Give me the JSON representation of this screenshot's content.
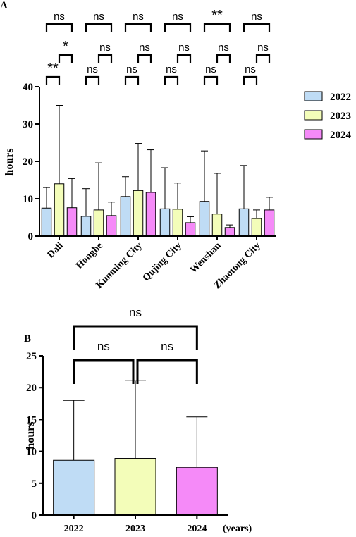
{
  "chart_data": [
    {
      "panel_label": "A",
      "type": "bar",
      "ylabel": "hours",
      "ylim": [
        0,
        40
      ],
      "yticks": [
        0,
        10,
        20,
        30,
        40
      ],
      "categories": [
        "Dali",
        "Honghe",
        "Kunming City",
        "Qujing City",
        "Wenshan",
        "Zhaotong City"
      ],
      "legend": {
        "placement": "right"
      },
      "series": [
        {
          "name": "2022",
          "color": "#bfdcf5",
          "values": [
            7.5,
            5.3,
            10.6,
            7.3,
            9.3,
            7.3
          ],
          "err_upper": [
            13.0,
            12.7,
            15.9,
            18.3,
            22.8,
            18.9
          ]
        },
        {
          "name": "2023",
          "color": "#f3fdb9",
          "values": [
            14.0,
            7.0,
            12.2,
            7.2,
            5.9,
            4.7
          ],
          "err_upper": [
            35.0,
            19.6,
            24.8,
            14.2,
            16.8,
            7.0
          ]
        },
        {
          "name": "2024",
          "color": "#f58af8",
          "values": [
            7.6,
            5.5,
            11.7,
            3.6,
            2.3,
            7.0
          ],
          "err_upper": [
            15.4,
            9.1,
            23.1,
            5.2,
            3.0,
            10.4
          ]
        }
      ],
      "annotations": [
        {
          "category": "Dali",
          "pair": "2022-2024",
          "text": "ns"
        },
        {
          "category": "Dali",
          "pair": "2023-2024",
          "text": "*"
        },
        {
          "category": "Dali",
          "pair": "2022-2023",
          "text": "**"
        },
        {
          "category": "Honghe",
          "pair": "2022-2024",
          "text": "ns"
        },
        {
          "category": "Honghe",
          "pair": "2023-2024",
          "text": "ns"
        },
        {
          "category": "Honghe",
          "pair": "2022-2023",
          "text": "ns"
        },
        {
          "category": "Kunming City",
          "pair": "2022-2024",
          "text": "ns"
        },
        {
          "category": "Kunming City",
          "pair": "2023-2024",
          "text": "ns"
        },
        {
          "category": "Kunming City",
          "pair": "2022-2023",
          "text": "ns"
        },
        {
          "category": "Qujing City",
          "pair": "2022-2024",
          "text": "ns"
        },
        {
          "category": "Qujing City",
          "pair": "2023-2024",
          "text": "ns"
        },
        {
          "category": "Qujing City",
          "pair": "2022-2023",
          "text": "ns"
        },
        {
          "category": "Wenshan",
          "pair": "2022-2024",
          "text": "**"
        },
        {
          "category": "Wenshan",
          "pair": "2023-2024",
          "text": "ns"
        },
        {
          "category": "Wenshan",
          "pair": "2022-2023",
          "text": "ns"
        },
        {
          "category": "Zhaotong City",
          "pair": "2022-2024",
          "text": "ns"
        },
        {
          "category": "Zhaotong City",
          "pair": "2022-2023",
          "text": "ns"
        },
        {
          "category": "Zhaotong City",
          "pair": "2023-2024",
          "text": "ns"
        }
      ]
    },
    {
      "panel_label": "B",
      "type": "bar",
      "ylabel": "hours",
      "xlabel": "(years)",
      "ylim": [
        0,
        25
      ],
      "yticks": [
        0,
        5,
        10,
        15,
        20,
        25
      ],
      "categories": [
        "2022",
        "2023",
        "2024"
      ],
      "colors": [
        "#bfdcf5",
        "#f3fdb9",
        "#f58af8"
      ],
      "values": [
        8.6,
        8.9,
        7.5
      ],
      "err_upper": [
        18.0,
        21.1,
        15.4
      ],
      "annotations": [
        {
          "pair": "2022-2024",
          "text": "ns"
        },
        {
          "pair": "2022-2023",
          "text": "ns"
        },
        {
          "pair": "2023-2024",
          "text": "ns"
        }
      ]
    }
  ]
}
